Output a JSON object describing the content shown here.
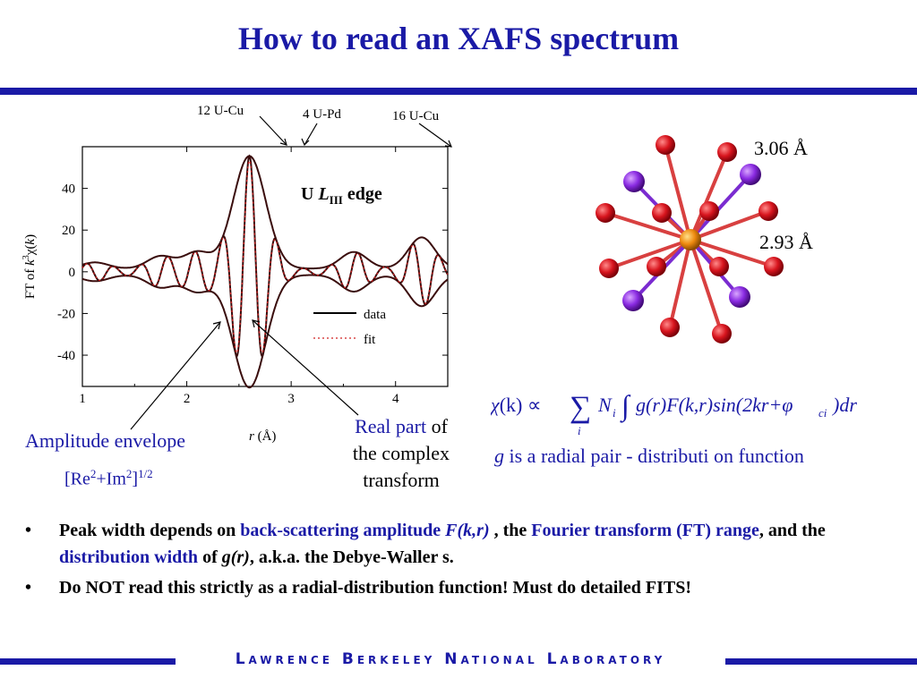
{
  "title": "How to read an XAFS spectrum",
  "colors": {
    "accent": "#1a1aa6",
    "data_line": "#3a0d0d",
    "fit_line": "#d02020"
  },
  "plot": {
    "annotations": {
      "u_cu_12": "12 U-Cu",
      "u_pd_4": "4 U-Pd",
      "u_cu_16": "16 U-Cu"
    },
    "edge_label_prefix": "U ",
    "edge_label_L": "L",
    "edge_label_sub": "III",
    "edge_label_suffix": " edge",
    "ylabel_prefix": "FT of ",
    "ylabel_k": "k",
    "ylabel_sup": "3",
    "ylabel_chi": "χ(",
    "ylabel_k2": "k",
    "ylabel_end": ")",
    "xlabel_r": "r",
    "xlabel_unit": " (Å)",
    "legend_data": "data",
    "legend_fit": "fit"
  },
  "chart_data": {
    "type": "line",
    "xlabel": "r (Å)",
    "ylabel": "FT of k3χ(k)",
    "xlim": [
      1,
      4.5
    ],
    "ylim": [
      -55,
      60
    ],
    "x_ticks": [
      1,
      2,
      3,
      4
    ],
    "y_ticks": [
      40,
      20,
      0,
      -20,
      -40
    ],
    "series": [
      {
        "name": "data",
        "style": "solid",
        "description_note": ""
      },
      {
        "name": "fit",
        "style": "dotted"
      }
    ],
    "envelope_peaks": [
      {
        "r": 1.12,
        "amp": 3
      },
      {
        "r": 1.75,
        "amp": 6
      },
      {
        "r": 2.1,
        "amp": 8
      },
      {
        "r": 2.6,
        "amp": 54
      },
      {
        "r": 3.6,
        "amp": 8
      },
      {
        "r": 4.25,
        "amp": 15
      }
    ],
    "legend_position": "bottom-right",
    "grid": false
  },
  "amplitude": {
    "label": "Amplitude envelope",
    "formula_open": "[Re",
    "formula_sup1": "2",
    "formula_plus": "+Im",
    "formula_sup2": "2",
    "formula_close": "]",
    "formula_sup3": "1/2"
  },
  "real_part": {
    "highlight": "Real part",
    "rest1": " of",
    "line2": "the complex",
    "line3": "transform"
  },
  "formula_text": {
    "chi": "χ",
    "open_k": "(k) ∝ ",
    "sum": "∑",
    "sum_index": "i",
    "N": "N",
    "N_sub": "i",
    "integral": "∫",
    "body": "g(r)F(k,r)sin(2kr+φ",
    "phi_sub": "ci",
    "end": ")dr"
  },
  "g_line": {
    "g": "g",
    "text": " is a radial pair - distributi on function"
  },
  "molecule": {
    "dist1": "3.06 Å",
    "dist2": "2.93 Å"
  },
  "bullets": [
    {
      "parts": [
        "Peak width depends on ",
        "back-scattering amplitude ",
        "F(k,r)",
        " , the ",
        "Fourier transform",
        "(FT) range",
        ", and the ",
        "distribution width",
        " of ",
        "g(r)",
        ", a.k.a. the Debye-Waller s."
      ]
    },
    {
      "text": "Do NOT read this strictly as a radial-distribution function! Must do detailed FITS!"
    }
  ],
  "bullet_char": "•",
  "footer": "Lawrence Berkeley National Laboratory"
}
